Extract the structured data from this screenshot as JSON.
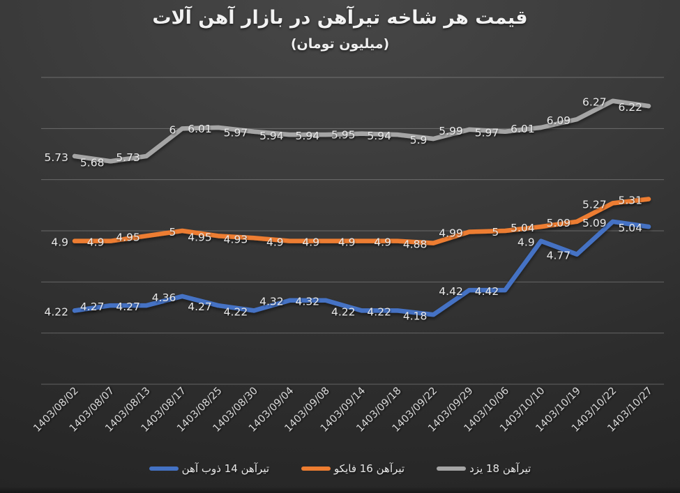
{
  "chart_data": {
    "type": "line",
    "title": "قیمت هر شاخه تیرآهن در بازار آهن آلات",
    "subtitle": "(میلیون تومان)",
    "x": [
      "1403/08/02",
      "1403/08/07",
      "1403/08/13",
      "1403/08/17",
      "1403/08/25",
      "1403/08/30",
      "1403/09/04",
      "1403/09/08",
      "1403/09/14",
      "1403/09/18",
      "1403/09/22",
      "1403/09/29",
      "1403/10/06",
      "1403/10/10",
      "1403/10/19",
      "1403/10/22",
      "1403/10/27"
    ],
    "series": [
      {
        "name": "تیرآهن 14 ذوب آهن",
        "color": "#4472C4",
        "values": [
          4.22,
          4.27,
          4.27,
          4.36,
          4.27,
          4.22,
          4.32,
          4.32,
          4.22,
          4.22,
          4.18,
          4.42,
          4.42,
          4.9,
          4.77,
          5.09,
          5.04
        ]
      },
      {
        "name": "تیرآهن 16 فایکو",
        "color": "#ED7D31",
        "values": [
          4.9,
          4.9,
          4.95,
          5,
          4.95,
          4.93,
          4.9,
          4.9,
          4.9,
          4.9,
          4.88,
          4.99,
          5,
          5.04,
          5.09,
          5.27,
          5.31
        ]
      },
      {
        "name": "تیرآهن 18 یزد",
        "color": "#A5A5A5",
        "values": [
          5.73,
          5.68,
          5.73,
          6,
          6.01,
          5.97,
          5.94,
          5.94,
          5.95,
          5.94,
          5.9,
          5.99,
          5.97,
          6.01,
          6.09,
          6.27,
          6.22
        ]
      }
    ],
    "ylim": [
      3.5,
      6.5
    ],
    "grid_step": 0.5,
    "grid": true,
    "y_axis_labels_visible": false,
    "legend_position": "bottom",
    "data_labels_position": "left",
    "x_label_rotation_deg": 45
  },
  "style": {
    "data_label_color": "#e9e9e9",
    "axis_label_color": "#d9d9d9",
    "gridline_color": "#6e6e6e",
    "title_color": "#f2f2f2",
    "background": "#333333"
  }
}
